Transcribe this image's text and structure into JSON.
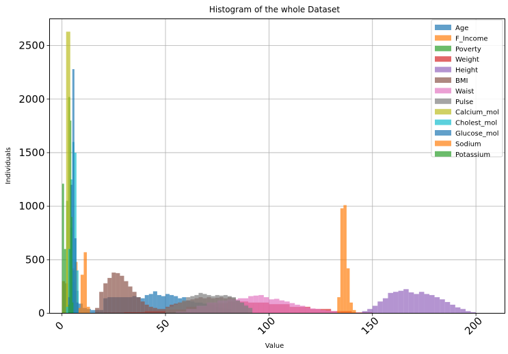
{
  "chart_data": {
    "type": "histogram",
    "title": "Histogram of the whole Dataset",
    "xlabel": "Value",
    "ylabel": "Individuals",
    "xlim": [
      -6,
      214
    ],
    "ylim": [
      0,
      2750
    ],
    "xticks": [
      0,
      50,
      100,
      150,
      200
    ],
    "yticks": [
      0,
      500,
      1000,
      1500,
      2000,
      2500
    ],
    "grid": true,
    "legend_position": "top-right",
    "alpha": 0.7,
    "series": [
      {
        "name": "Age",
        "color": "#1f77b4",
        "bin_edges": [
          0,
          2,
          4,
          6,
          8,
          10,
          12,
          14,
          16,
          18,
          20,
          22,
          24,
          26,
          28,
          30,
          32,
          34,
          36,
          38,
          40,
          42,
          44,
          46,
          48,
          50,
          52,
          54,
          56,
          58,
          60,
          62,
          64,
          66,
          68,
          70,
          72,
          74,
          76,
          78,
          80,
          82
        ],
        "counts": [
          0,
          0,
          290,
          210,
          90,
          50,
          40,
          30,
          30,
          30,
          140,
          150,
          150,
          150,
          150,
          150,
          150,
          160,
          150,
          140,
          170,
          180,
          205,
          170,
          160,
          180,
          170,
          160,
          140,
          150,
          120,
          110,
          100,
          100,
          90,
          80,
          75,
          60,
          50,
          45,
          40
        ]
      },
      {
        "name": "F_Income",
        "color": "#ff7f0e",
        "bin_edges": [
          0,
          1.5,
          3,
          4.5,
          6,
          7.5,
          9,
          10.5,
          12,
          13.5
        ],
        "counts": [
          300,
          280,
          400,
          420,
          480,
          50,
          360,
          570,
          60
        ]
      },
      {
        "name": "Poverty",
        "color": "#2ca02c",
        "bin_edges": [
          0,
          1,
          2,
          3,
          4,
          5,
          6
        ],
        "counts": [
          1210,
          600,
          1050,
          2020,
          800,
          400
        ]
      },
      {
        "name": "Weight",
        "color": "#d62728",
        "bin_edges": [
          20,
          30,
          40,
          50,
          60,
          70,
          80,
          90,
          100,
          110,
          120,
          130,
          140,
          150
        ],
        "counts": [
          5,
          10,
          20,
          35,
          60,
          95,
          110,
          100,
          85,
          60,
          40,
          20,
          8
        ]
      },
      {
        "name": "Height",
        "color": "#9467bd",
        "bin_edges": [
          145,
          147.5,
          150,
          152.5,
          155,
          157.5,
          160,
          162.5,
          165,
          167.5,
          170,
          172.5,
          175,
          177.5,
          180,
          182.5,
          185,
          187.5,
          190,
          192.5,
          195,
          197.5,
          200
        ],
        "counts": [
          20,
          40,
          70,
          110,
          140,
          190,
          200,
          210,
          225,
          195,
          180,
          200,
          180,
          170,
          150,
          130,
          105,
          80,
          55,
          40,
          20,
          10
        ]
      },
      {
        "name": "BMI",
        "color": "#8c564b",
        "bin_edges": [
          16,
          18,
          20,
          22,
          24,
          26,
          28,
          30,
          32,
          34,
          36,
          38,
          40,
          42,
          44,
          46,
          48,
          50,
          52,
          54,
          56,
          58,
          60,
          62,
          64,
          66,
          68,
          70,
          72,
          74,
          76,
          78,
          80,
          82,
          84,
          86,
          88,
          90
        ],
        "counts": [
          50,
          200,
          280,
          330,
          380,
          375,
          350,
          300,
          250,
          200,
          150,
          110,
          80,
          60,
          50,
          40,
          40,
          60,
          80,
          90,
          100,
          110,
          120,
          130,
          140,
          150,
          140,
          150,
          140,
          145,
          150,
          140,
          150,
          140,
          120,
          100,
          80
        ]
      },
      {
        "name": "Waist",
        "color": "#e377c2",
        "bin_edges": [
          55,
          60,
          65,
          70,
          75,
          80,
          85,
          90,
          92.5,
          95,
          97.5,
          100,
          102.5,
          105,
          107.5,
          110,
          112.5,
          115,
          117.5,
          120,
          122.5,
          125,
          127.5,
          130,
          132.5,
          135,
          140,
          145
        ],
        "counts": [
          15,
          40,
          70,
          100,
          120,
          130,
          140,
          160,
          165,
          170,
          150,
          130,
          135,
          120,
          110,
          95,
          80,
          70,
          55,
          45,
          40,
          30,
          25,
          20,
          15,
          10,
          5
        ]
      },
      {
        "name": "Pulse",
        "color": "#7f7f7f",
        "bin_edges": [
          50,
          52,
          54,
          56,
          58,
          60,
          62,
          64,
          66,
          68,
          70,
          72,
          74,
          76,
          78,
          80,
          82,
          84,
          86,
          88,
          90,
          92
        ],
        "counts": [
          50,
          60,
          80,
          100,
          120,
          150,
          160,
          170,
          190,
          180,
          170,
          160,
          170,
          165,
          170,
          160,
          150,
          120,
          100,
          70,
          50
        ]
      },
      {
        "name": "Calcium_mol",
        "color": "#bcbd22",
        "bin_edges": [
          2,
          4
        ],
        "counts": [
          2630
        ]
      },
      {
        "name": "Cholest_mol",
        "color": "#17becf",
        "bin_edges": [
          2,
          3,
          4,
          5,
          6,
          7,
          8
        ],
        "counts": [
          60,
          600,
          1250,
          1600,
          1500,
          400
        ]
      },
      {
        "name": "Glucose_mol",
        "color": "#1f77b4",
        "bin_edges": [
          3,
          4,
          5,
          6,
          7,
          8
        ],
        "counts": [
          150,
          1200,
          2280,
          700,
          100
        ]
      },
      {
        "name": "Sodium",
        "color": "#ff7f0e",
        "bin_edges": [
          133,
          134.5,
          136,
          137.5,
          139,
          140.5,
          142
        ],
        "counts": [
          150,
          980,
          1010,
          420,
          100,
          30
        ]
      },
      {
        "name": "Potassium",
        "color": "#2ca02c",
        "bin_edges": [
          3,
          3.5,
          4,
          4.5,
          5,
          5.5
        ],
        "counts": [
          80,
          600,
          1800,
          900,
          100
        ]
      }
    ]
  }
}
